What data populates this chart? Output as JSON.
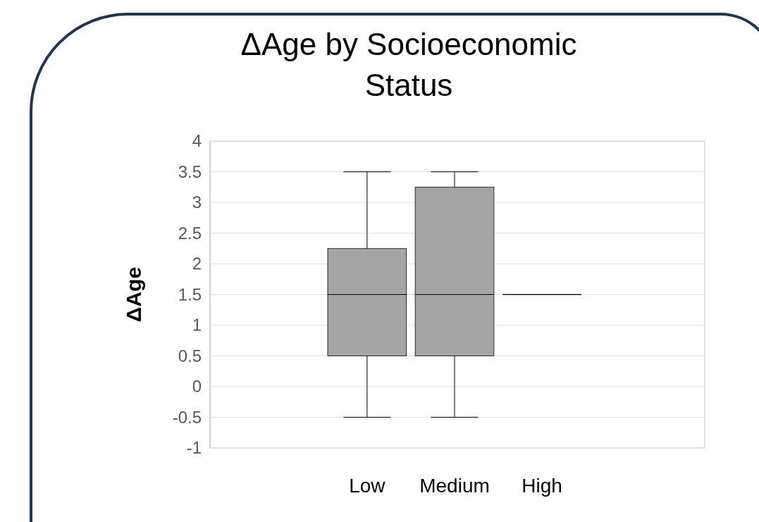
{
  "chart_data": {
    "type": "box",
    "title": "ΔAge by Socioeconomic Status",
    "ylabel": "ΔAge",
    "categories": [
      "Low",
      "Medium",
      "High"
    ],
    "series": [
      {
        "color": "#a5a5a5",
        "boxes": [
          {
            "low": -0.5,
            "q1": 0.5,
            "median": 1.5,
            "q3": 2.25,
            "high": 3.5
          },
          {
            "low": -0.5,
            "q1": 0.5,
            "median": 1.5,
            "q3": 3.25,
            "high": 3.5
          },
          {
            "low": 1.5,
            "q1": 1.5,
            "median": 1.5,
            "q3": 1.5,
            "high": 1.5
          }
        ]
      }
    ],
    "ylim": [
      -1,
      4
    ],
    "yticks": [
      -1,
      -0.5,
      0,
      0.5,
      1,
      1.5,
      2,
      2.5,
      3,
      3.5,
      4
    ],
    "grid": "y"
  }
}
